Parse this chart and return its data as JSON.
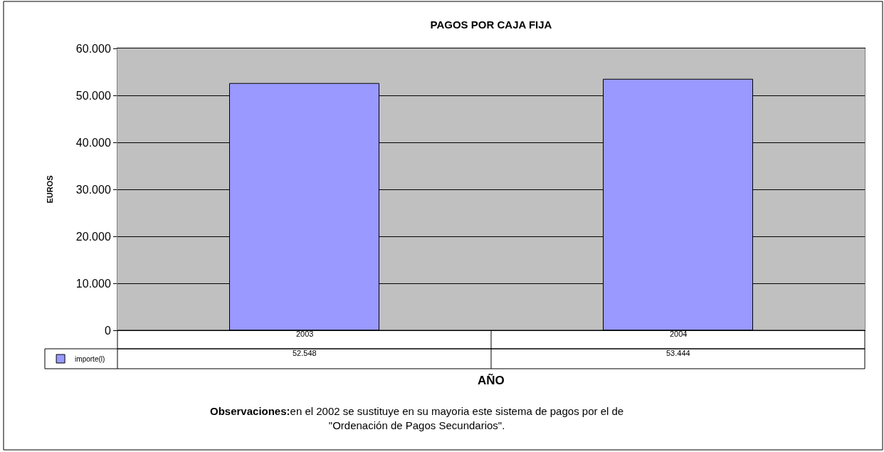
{
  "chart_data": {
    "type": "bar",
    "title": "PAGOS POR CAJA FIJA",
    "xlabel": "AÑO",
    "ylabel": "EUROS",
    "categories": [
      "2003",
      "2004"
    ],
    "series": [
      {
        "name": "importe(l)",
        "color": "#9999ff",
        "values": [
          52548,
          53444
        ],
        "value_labels": [
          "52.548",
          "53.444"
        ]
      }
    ],
    "ylim": [
      0,
      60000
    ],
    "yticks": [
      {
        "value": 0,
        "label": "0"
      },
      {
        "value": 10000,
        "label": "10.000"
      },
      {
        "value": 20000,
        "label": "20.000"
      },
      {
        "value": 30000,
        "label": "30.000"
      },
      {
        "value": 40000,
        "label": "40.000"
      },
      {
        "value": 50000,
        "label": "50.000"
      },
      {
        "value": 60000,
        "label": "60.000"
      }
    ],
    "grid": "y",
    "legend": "bottom left",
    "annotations": [
      "Observaciones:",
      "en el 2002 se sustituye en su mayoria este sistema de pagos por el de\n\"Ordenación de Pagos Secundarios\"."
    ]
  }
}
